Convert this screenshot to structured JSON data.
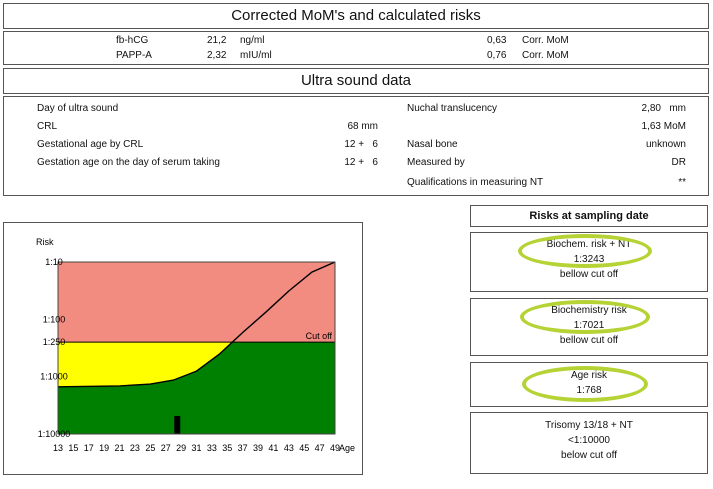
{
  "corrected": {
    "title": "Corrected MoM's and calculated risks",
    "rows": [
      {
        "name": "fb-hCG",
        "value": "21,2",
        "unit": "ng/ml",
        "mom": "0,63",
        "mom_label": "Corr. MoM"
      },
      {
        "name": "PAPP-A",
        "value": "2,32",
        "unit": "mIU/ml",
        "mom": "0,76",
        "mom_label": "Corr. MoM"
      }
    ]
  },
  "ultrasound": {
    "title": "Ultra sound data",
    "left": [
      {
        "label": "Day of ultra sound",
        "value": ""
      },
      {
        "label": "CRL",
        "value": "68 mm"
      },
      {
        "label": "Gestational age by CRL",
        "value": "12 +   6"
      },
      {
        "label": "Gestation age on the day of serum taking",
        "value": "12 +   6"
      }
    ],
    "right": [
      {
        "label": "Nuchal translucency",
        "value": "2,80   mm"
      },
      {
        "label": "",
        "value": "1,63 MoM"
      },
      {
        "label": "Nasal bone",
        "value": "unknown"
      },
      {
        "label": "Measured by",
        "value": "DR"
      },
      {
        "label": "Qualifications in measuring NT",
        "value": "**"
      }
    ]
  },
  "risks": {
    "title": "Risks at sampling date",
    "boxes": [
      {
        "name": "Biochem. risk + NT",
        "value": "1:3243",
        "note": "bellow cut off"
      },
      {
        "name": "Biochemistry risk",
        "value": "1:7021",
        "note": "bellow cut off"
      },
      {
        "name": "Age risk",
        "value": "1:768",
        "note": ""
      },
      {
        "name": "Trisomy 13/18 + NT",
        "value": "<1:10000",
        "note": "below cut off"
      }
    ]
  },
  "chart_data": {
    "type": "area",
    "ylabel": "Risk",
    "xlabel": "Age",
    "y_ticks": [
      "1:10",
      "1:100",
      "1:250",
      "1:1000",
      "1:10000"
    ],
    "x_ticks": [
      "13",
      "15",
      "17",
      "19",
      "21",
      "23",
      "25",
      "27",
      "29",
      "31",
      "33",
      "35",
      "37",
      "39",
      "41",
      "43",
      "45",
      "47",
      "49"
    ],
    "cutoff_label": "Cut off",
    "cutoff": 250,
    "log_scale": true,
    "xlim": [
      13,
      49
    ],
    "ylim_denominator": [
      10,
      10000
    ],
    "age_risk_curve": {
      "x": [
        13,
        21,
        25,
        28,
        31,
        34,
        37,
        40,
        43,
        46,
        49
      ],
      "denominator": [
        1500,
        1450,
        1350,
        1150,
        800,
        400,
        170,
        75,
        32,
        15,
        10
      ]
    },
    "marker_age": 28.5,
    "colors": {
      "high": "#f28b80",
      "mid": "#ffff00",
      "low": "#008000",
      "marker": "#000000"
    }
  }
}
